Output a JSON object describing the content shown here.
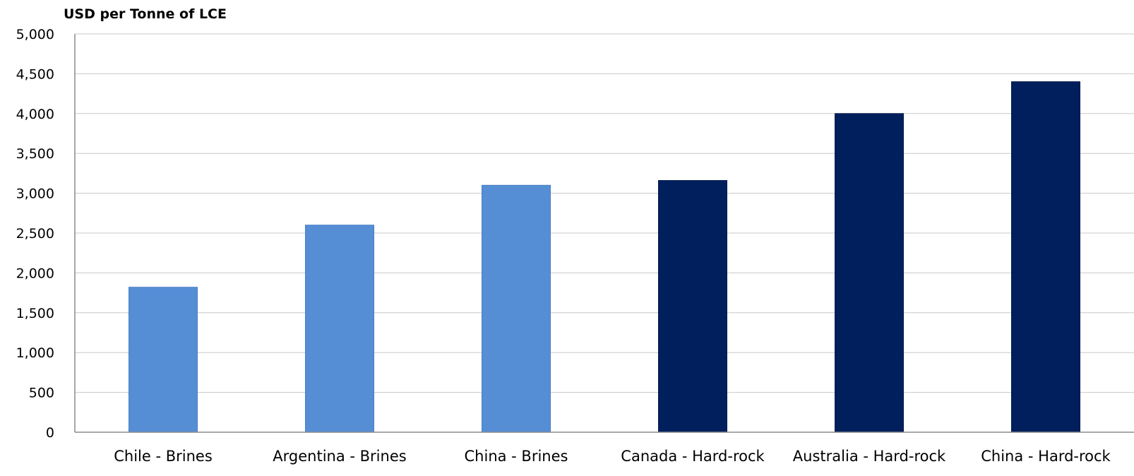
{
  "chart_data": {
    "type": "bar",
    "title": "",
    "xlabel": "",
    "ylabel": "USD per Tonne of LCE",
    "ylim": [
      0,
      5000
    ],
    "y_ticks": [
      "0",
      "500",
      "1,000",
      "1,500",
      "2,000",
      "2,500",
      "3,000",
      "3,500",
      "4,000",
      "4,500",
      "5,000"
    ],
    "y_tick_values": [
      0,
      500,
      1000,
      1500,
      2000,
      2500,
      3000,
      3500,
      4000,
      4500,
      5000
    ],
    "grid": true,
    "legend": "none",
    "categories": [
      "Chile - Brines",
      "Argentina - Brines",
      "China - Brines",
      "Canada - Hard-rock",
      "Australia - Hard-rock",
      "China - Hard-rock"
    ],
    "values": [
      1820,
      2600,
      3100,
      3160,
      4000,
      4400
    ],
    "bar_colors": [
      "#558ed5",
      "#558ed5",
      "#558ed5",
      "#001f5c",
      "#001f5c",
      "#001f5c"
    ]
  }
}
